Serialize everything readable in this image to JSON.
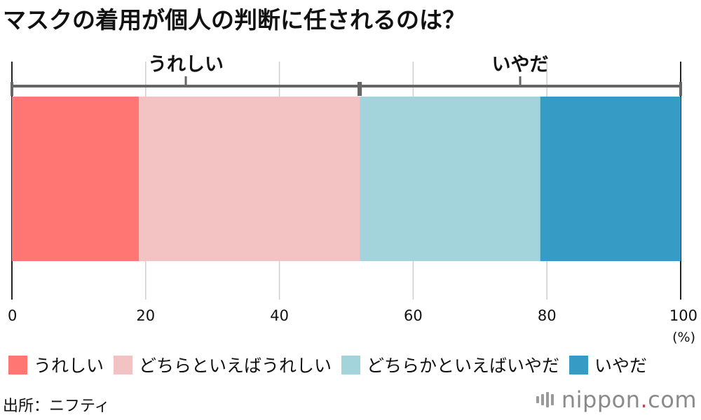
{
  "chart_data": {
    "type": "bar",
    "orientation": "horizontal-stacked-100",
    "title": "マスクの着用が個人の判断に任されるのは？",
    "categories": [
      "うれしい",
      "どちらといえばうれしい",
      "どちらかといえばいやだ",
      "いやだ"
    ],
    "values": [
      19,
      33,
      27,
      21
    ],
    "colors": [
      "#ff7672",
      "#f2c3c2",
      "#a3d4db",
      "#369cc5"
    ],
    "groups": [
      {
        "label": "うれしい",
        "from": 0,
        "to": 52
      },
      {
        "label": "いやだ",
        "from": 52,
        "to": 100
      }
    ],
    "xlim": [
      0,
      100
    ],
    "xticks": [
      0,
      20,
      40,
      60,
      80,
      100
    ],
    "xunit": "(%)",
    "grid": true,
    "legend": "bottom"
  },
  "source": "出所：ニフティ",
  "brand": {
    "name": "nippon",
    "dot": ".",
    "tld": "com"
  }
}
